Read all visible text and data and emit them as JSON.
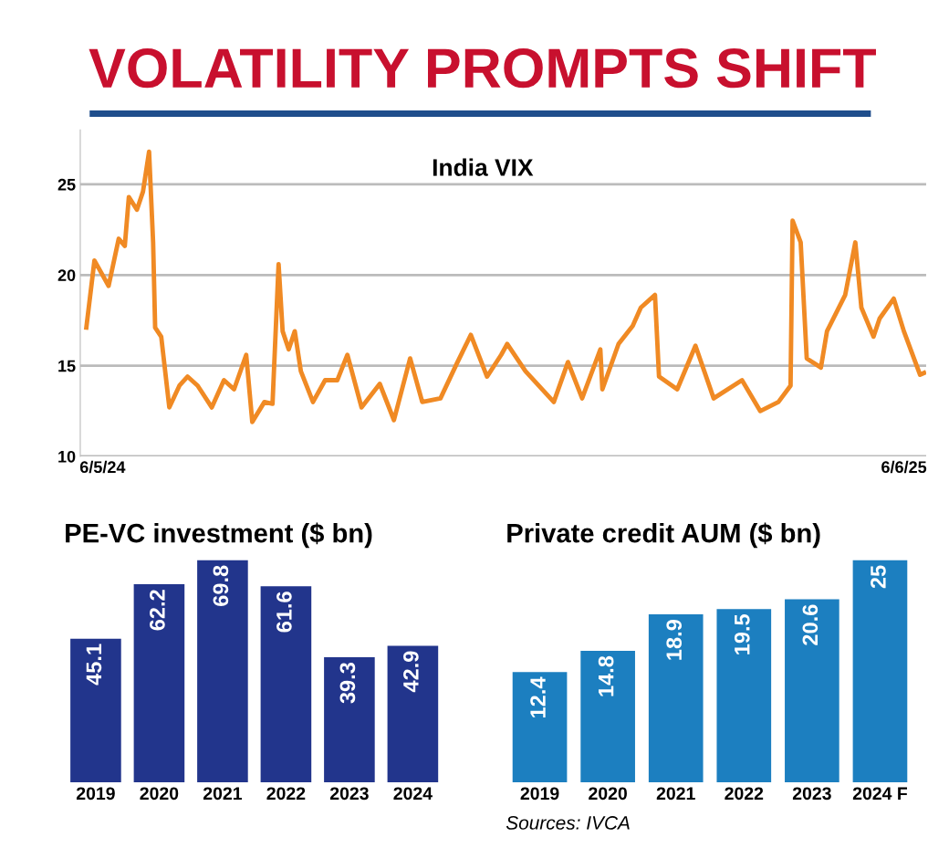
{
  "chart_data": [
    {
      "type": "line",
      "title": "VOLATILITY PROMPTS SHIFT",
      "subtitle": "India VIX",
      "x": [
        "2024-04-28",
        "2024-05-02",
        "2024-05-09",
        "2024-05-14",
        "2024-05-17",
        "2024-05-19",
        "2024-05-23",
        "2024-05-26",
        "2024-05-29",
        "2024-05-31",
        "2024-06-01",
        "2024-06-04",
        "2024-06-08",
        "2024-06-13",
        "2024-06-17",
        "2024-06-22",
        "2024-06-29",
        "2024-07-05",
        "2024-07-10",
        "2024-07-16",
        "2024-07-19",
        "2024-07-25",
        "2024-07-29",
        "2024-08-01",
        "2024-08-03",
        "2024-08-06",
        "2024-08-09",
        "2024-08-12",
        "2024-08-18",
        "2024-08-24",
        "2024-08-30",
        "2024-09-04",
        "2024-09-11",
        "2024-09-20",
        "2024-09-27",
        "2024-10-05",
        "2024-10-11",
        "2024-10-20",
        "2024-10-28",
        "2024-11-04",
        "2024-11-12",
        "2024-11-19",
        "2024-11-22",
        "2024-12-01",
        "2024-12-15",
        "2024-12-22",
        "2024-12-29",
        "2025-01-07",
        "2025-01-08",
        "2025-01-16",
        "2025-01-23",
        "2025-01-27",
        "2025-02-03",
        "2025-02-05",
        "2025-02-14",
        "2025-02-23",
        "2025-03-04",
        "2025-03-18",
        "2025-03-27",
        "2025-04-05",
        "2025-04-11",
        "2025-04-12",
        "2025-04-16",
        "2025-04-19",
        "2025-04-26",
        "2025-04-29",
        "2025-05-08",
        "2025-05-13",
        "2025-05-16",
        "2025-05-22",
        "2025-05-25",
        "2025-06-01",
        "2025-06-06",
        "2025-06-14",
        "2025-06-16"
      ],
      "series": [
        {
          "color": "#f08a24",
          "values": [
            17.1,
            20.8,
            19.4,
            22.0,
            21.6,
            24.3,
            23.6,
            24.6,
            26.8,
            21.8,
            17.1,
            16.6,
            12.7,
            13.9,
            14.4,
            13.9,
            12.7,
            14.2,
            13.7,
            15.6,
            11.9,
            13.0,
            12.9,
            20.6,
            16.9,
            15.9,
            16.9,
            14.7,
            13.0,
            14.2,
            14.2,
            15.6,
            12.7,
            14.0,
            12.0,
            15.4,
            13.0,
            13.2,
            15.1,
            16.7,
            14.4,
            15.6,
            16.2,
            14.7,
            13.0,
            15.2,
            13.2,
            15.9,
            13.7,
            16.2,
            17.2,
            18.2,
            18.9,
            14.4,
            13.7,
            16.1,
            13.2,
            14.2,
            12.5,
            13.0,
            13.9,
            23.0,
            21.8,
            15.4,
            14.9,
            16.9,
            18.9,
            21.8,
            18.2,
            16.6,
            17.6,
            18.7,
            16.9,
            14.5,
            14.6
          ]
        }
      ],
      "xlim": [
        "2024-04-25",
        "2025-06-17"
      ],
      "xticks": [
        {
          "value": "2024-05-06",
          "label": "6/5/24"
        },
        {
          "value": "2025-06-06",
          "label": "6/6/25"
        }
      ],
      "ylim": [
        10,
        28
      ],
      "yticks": [
        10,
        15,
        20,
        25
      ],
      "grid": "y",
      "marker": "none",
      "line_style": "solid"
    },
    {
      "type": "bar",
      "title": "PE-VC investment ($ bn)",
      "categories": [
        "2019",
        "2020",
        "2021",
        "2022",
        "2023",
        "2024"
      ],
      "values": [
        45.1,
        62.2,
        69.8,
        61.6,
        39.3,
        42.9
      ],
      "color": "#22358c",
      "data_labels": true,
      "tick_labels": "x"
    },
    {
      "type": "bar",
      "title": "Private credit AUM ($ bn)",
      "categories": [
        "2019",
        "2020",
        "2021",
        "2022",
        "2023",
        "2024 F"
      ],
      "values": [
        12.4,
        14.8,
        18.9,
        19.5,
        20.6,
        25
      ],
      "color": "#1c7fc0",
      "data_labels": true,
      "tick_labels": "x",
      "annotations": [
        "Sources: IVCA"
      ]
    }
  ]
}
